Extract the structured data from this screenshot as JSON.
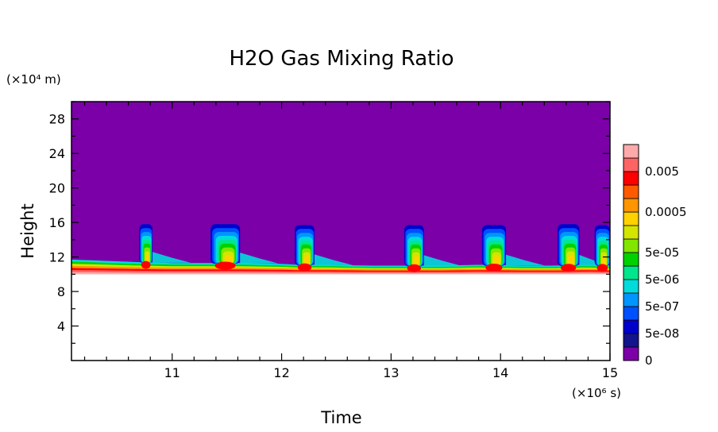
{
  "chart_data": {
    "type": "contour",
    "title": "H2O Gas Mixing Ratio",
    "xlabel": "Time",
    "ylabel": "Height",
    "x_unit": "(×10⁶ s)",
    "y_unit": "(×10⁴ m)",
    "xlim": [
      10.08,
      15.0
    ],
    "ylim": [
      0,
      30
    ],
    "x_ticks": [
      "11",
      "12",
      "13",
      "14",
      "15"
    ],
    "y_ticks": [
      "4",
      "8",
      "12",
      "16",
      "20",
      "24",
      "28"
    ],
    "background_level_color": "#7b00a8",
    "tropopause_height": {
      "x": [
        10.08,
        10.5,
        10.7,
        11.0,
        11.3,
        11.6,
        12.0,
        12.15,
        12.4,
        12.8,
        13.1,
        13.5,
        13.8,
        14.2,
        14.5,
        14.8,
        15.0
      ],
      "surface": [
        11.7,
        11.5,
        11.4,
        11.3,
        11.3,
        11.3,
        11.2,
        11.1,
        11.1,
        11.0,
        11.0,
        11.0,
        11.1,
        11.0,
        11.0,
        11.1,
        11.0
      ],
      "lower": [
        10.0,
        10.0,
        10.0,
        10.0,
        10.0,
        10.0,
        10.0,
        10.0,
        10.0,
        10.0,
        10.0,
        10.0,
        10.0,
        10.0,
        10.0,
        10.0,
        10.0
      ]
    },
    "moist_plumes": [
      {
        "start": 10.7,
        "end": 10.82,
        "top": 15.8
      },
      {
        "start": 11.35,
        "end": 11.62,
        "top": 15.8
      },
      {
        "start": 12.12,
        "end": 12.3,
        "top": 15.7
      },
      {
        "start": 13.12,
        "end": 13.3,
        "top": 15.7
      },
      {
        "start": 13.83,
        "end": 14.05,
        "top": 15.7
      },
      {
        "start": 14.52,
        "end": 14.72,
        "top": 15.8
      },
      {
        "start": 14.86,
        "end": 15.0,
        "top": 15.7
      }
    ],
    "colorbar": {
      "levels": [
        {
          "color": "#7b00a8",
          "label": "0"
        },
        {
          "color": "#14148c",
          "label": ""
        },
        {
          "color": "#0000cd",
          "label": "5e-08"
        },
        {
          "color": "#0050ff",
          "label": ""
        },
        {
          "color": "#0096ff",
          "label": "5e-07"
        },
        {
          "color": "#00dcdc",
          "label": ""
        },
        {
          "color": "#00e68c",
          "label": "5e-06"
        },
        {
          "color": "#00d200",
          "label": ""
        },
        {
          "color": "#82e600",
          "label": "5e-05"
        },
        {
          "color": "#d2e600",
          "label": ""
        },
        {
          "color": "#ffd200",
          "label": ""
        },
        {
          "color": "#ff9600",
          "label": "0.0005"
        },
        {
          "color": "#ff5a00",
          "label": ""
        },
        {
          "color": "#ff0000",
          "label": ""
        },
        {
          "color": "#ff6464",
          "label": "0.005"
        },
        {
          "color": "#ffaaaa",
          "label": ""
        }
      ]
    }
  }
}
